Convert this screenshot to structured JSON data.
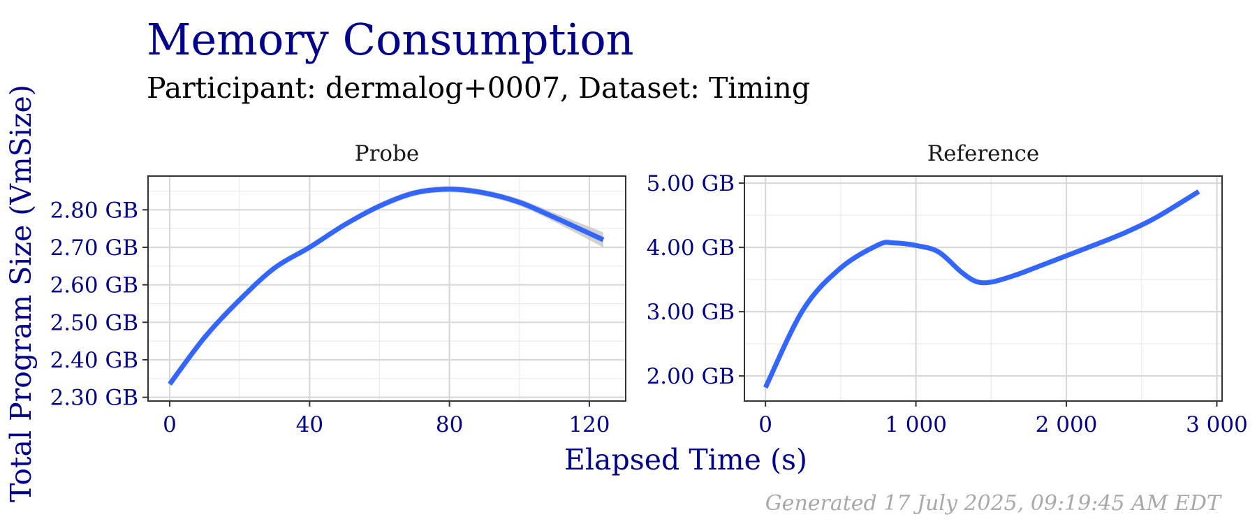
{
  "title": "Memory Consumption",
  "subtitle": "Participant: dermalog+0007, Dataset: Timing",
  "x_label": "Elapsed Time (s)",
  "y_label": "Total Program Size (VmSize)",
  "caption": "Generated 17 July 2025, 09:19:45 AM EDT",
  "colors": {
    "title": "#00008B",
    "axis_text": "#00008B",
    "line": "#3366FF",
    "ribbon": "#BEBEBE",
    "caption": "#A9A9A9",
    "grid": "#D9D9D9",
    "panel_border": "#333333"
  },
  "chart_data": [
    {
      "type": "line",
      "panel": "Probe",
      "x_ticks": [
        0,
        40,
        80,
        120
      ],
      "x_tick_labels": [
        "0",
        "40",
        "80",
        "120"
      ],
      "y_ticks": [
        2.3,
        2.4,
        2.5,
        2.6,
        2.7,
        2.8
      ],
      "y_tick_labels": [
        "2.30 GB",
        "2.40 GB",
        "2.50 GB",
        "2.60 GB",
        "2.70 GB",
        "2.80 GB"
      ],
      "xlim": [
        -6.2,
        130.4
      ],
      "ylim": [
        2.29,
        2.89
      ],
      "series": [
        {
          "x": [
            0,
            10,
            20,
            30,
            40,
            50,
            60,
            70,
            80,
            90,
            100,
            110,
            124
          ],
          "y": [
            2.335,
            2.46,
            2.56,
            2.645,
            2.7,
            2.76,
            2.81,
            2.845,
            2.855,
            2.845,
            2.82,
            2.78,
            2.72
          ],
          "band": [
            0.004,
            0.004,
            0.004,
            0.006,
            0.007,
            0.007,
            0.008,
            0.008,
            0.008,
            0.008,
            0.009,
            0.012,
            0.02
          ]
        }
      ]
    },
    {
      "type": "line",
      "panel": "Reference",
      "x_ticks": [
        0,
        1000,
        2000,
        3000
      ],
      "x_tick_labels": [
        "0",
        "1 000",
        "2 000",
        "3 000"
      ],
      "y_ticks": [
        2,
        3,
        4,
        5
      ],
      "y_tick_labels": [
        "2.00 GB",
        "3.00 GB",
        "4.00 GB",
        "5.00 GB"
      ],
      "xlim": [
        -140,
        3035
      ],
      "ylim": [
        1.61,
        5.11
      ],
      "series": [
        {
          "x": [
            0,
            250,
            500,
            750,
            850,
            1000,
            1150,
            1300,
            1400,
            1500,
            1650,
            1800,
            2000,
            2200,
            2400,
            2600,
            2880
          ],
          "y": [
            1.82,
            3.03,
            3.68,
            4.04,
            4.07,
            4.03,
            3.93,
            3.62,
            3.47,
            3.46,
            3.56,
            3.69,
            3.87,
            4.05,
            4.24,
            4.47,
            4.87
          ]
        }
      ]
    }
  ]
}
